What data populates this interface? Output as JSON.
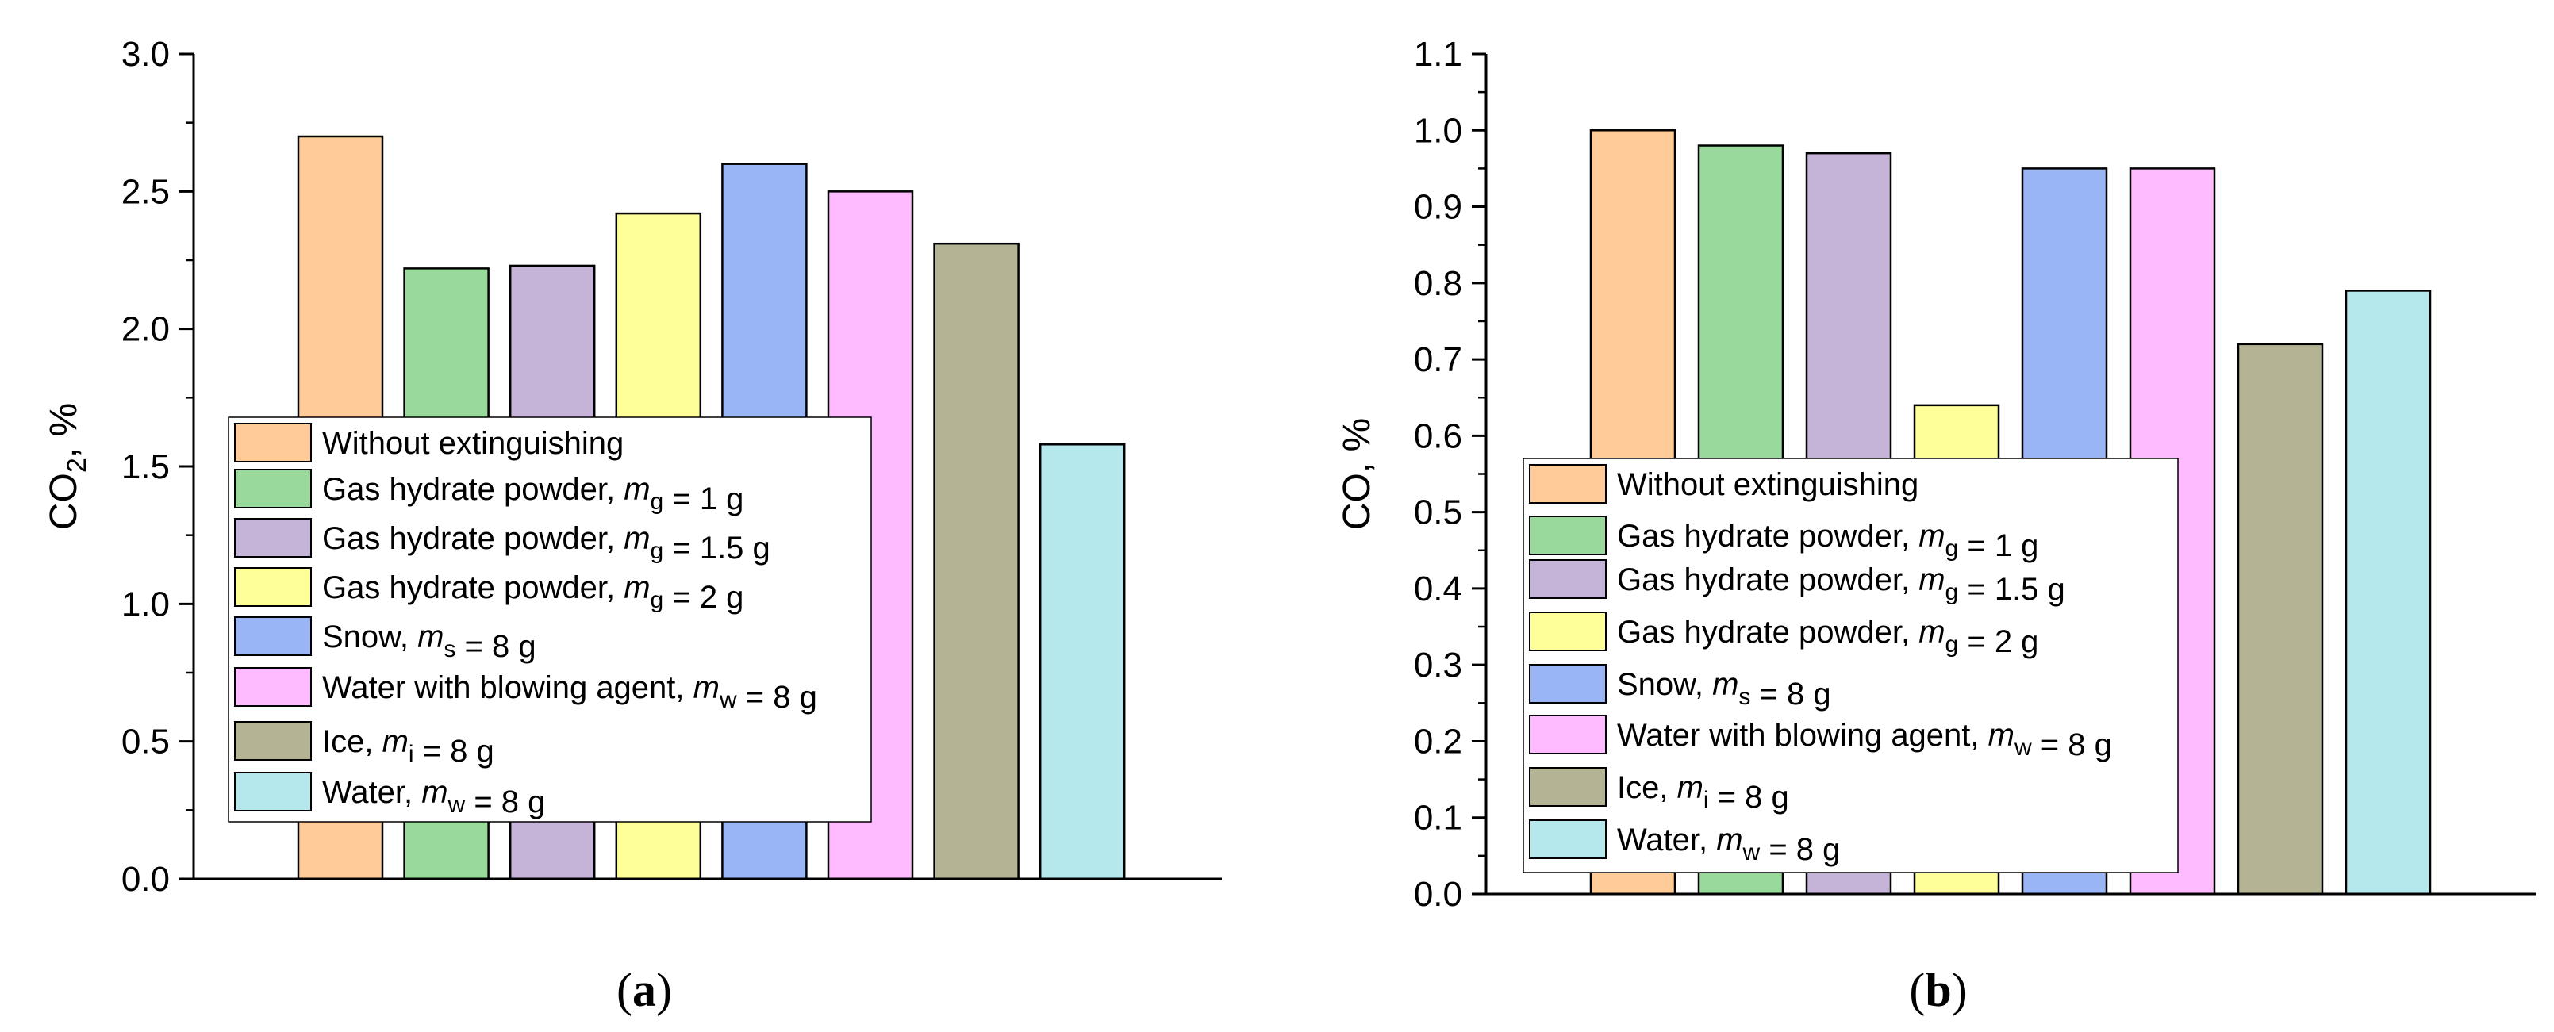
{
  "legend": [
    {
      "parts": [
        {
          "t": "Without extinguishing"
        }
      ],
      "color": "#FFCC99"
    },
    {
      "parts": [
        {
          "t": "Gas hydrate powder, "
        },
        {
          "t": "m",
          "style": "italic"
        },
        {
          "t": "g",
          "style": "sub"
        },
        {
          "t": " = 1 g"
        }
      ],
      "color": "#99D99B"
    },
    {
      "parts": [
        {
          "t": "Gas hydrate powder, "
        },
        {
          "t": "m",
          "style": "italic"
        },
        {
          "t": "g",
          "style": "sub"
        },
        {
          "t": " = 1.5 g"
        }
      ],
      "color": "#C5B3D8"
    },
    {
      "parts": [
        {
          "t": "Gas hydrate powder, "
        },
        {
          "t": "m",
          "style": "italic"
        },
        {
          "t": "g",
          "style": "sub"
        },
        {
          "t": " = 2 g"
        }
      ],
      "color": "#FFFF99"
    },
    {
      "parts": [
        {
          "t": "Snow, "
        },
        {
          "t": "m",
          "style": "italic"
        },
        {
          "t": "s",
          "style": "sub"
        },
        {
          "t": " = 8 g"
        }
      ],
      "color": "#99B5F5"
    },
    {
      "parts": [
        {
          "t": "Water with blowing agent, "
        },
        {
          "t": "m",
          "style": "italic"
        },
        {
          "t": "w",
          "style": "sub"
        },
        {
          "t": " = 8 g"
        }
      ],
      "color": "#FFBBFF"
    },
    {
      "parts": [
        {
          "t": "Ice, "
        },
        {
          "t": "m",
          "style": "italic"
        },
        {
          "t": "i",
          "style": "sub"
        },
        {
          "t": " = 8 g"
        }
      ],
      "color": "#B4B494"
    },
    {
      "parts": [
        {
          "t": "Water, "
        },
        {
          "t": "m",
          "style": "italic"
        },
        {
          "t": "w",
          "style": "sub"
        },
        {
          "t": " = 8 g"
        }
      ],
      "color": "#B5E8ED"
    }
  ],
  "chart_data": [
    {
      "type": "bar",
      "panel_label": "(a)",
      "ylabel": {
        "main": "CO",
        "sub": "2",
        "suffix": ", %"
      },
      "xlabel": "",
      "ylim": [
        0,
        3.0
      ],
      "yticks": [
        0.0,
        0.5,
        1.0,
        1.5,
        2.0,
        2.5,
        3.0
      ],
      "tick_decimals": 1,
      "values": [
        2.7,
        2.22,
        2.23,
        2.42,
        2.6,
        2.5,
        2.31,
        1.58
      ]
    },
    {
      "type": "bar",
      "panel_label": "(b)",
      "ylabel": {
        "main": "CO",
        "sub": "",
        "suffix": ", %"
      },
      "xlabel": "",
      "ylim": [
        0,
        1.1
      ],
      "yticks": [
        0.0,
        0.1,
        0.2,
        0.3,
        0.4,
        0.5,
        0.6,
        0.7,
        0.8,
        0.9,
        1.0,
        1.1
      ],
      "tick_decimals": 1,
      "values": [
        1.0,
        0.98,
        0.97,
        0.64,
        0.95,
        0.95,
        0.72,
        0.79
      ]
    }
  ]
}
